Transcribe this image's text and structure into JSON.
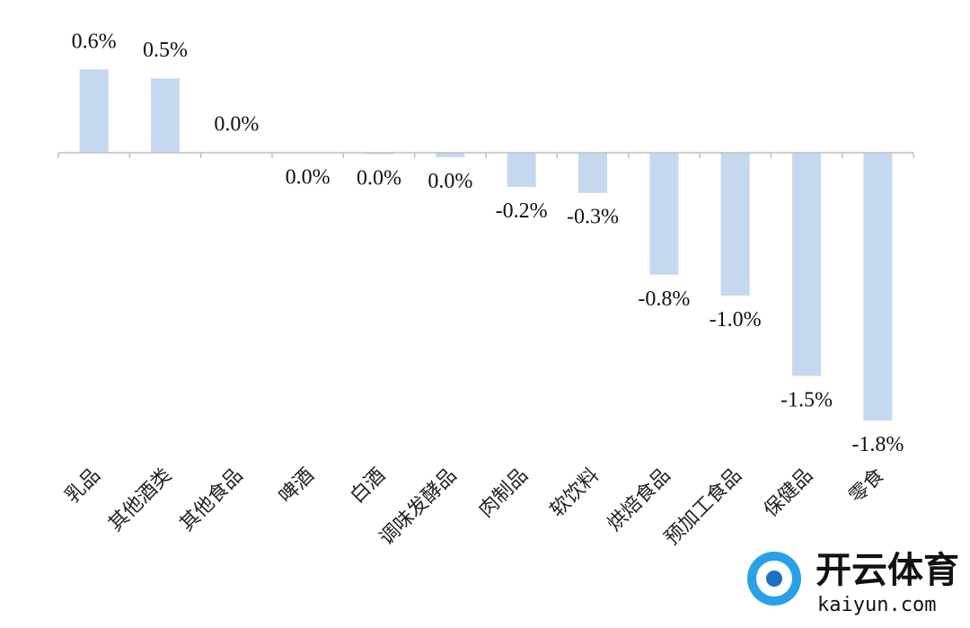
{
  "chart_data": {
    "type": "bar",
    "categories": [
      "乳品",
      "其他酒类",
      "其他食品",
      "啤酒",
      "白酒",
      "调味发酵品",
      "肉制品",
      "软饮料",
      "烘焙食品",
      "预加工食品",
      "保健品",
      "零食"
    ],
    "values": [
      0.56,
      0.5,
      0.002,
      -0.002,
      -0.01,
      -0.03,
      -0.23,
      -0.27,
      -0.82,
      -0.96,
      -1.5,
      -1.8
    ],
    "value_labels": [
      "0.6%",
      "0.5%",
      "0.0%",
      "0.0%",
      "0.0%",
      "0.0%",
      "-0.2%",
      "-0.3%",
      "-0.8%",
      "-1.0%",
      "-1.5%",
      "-1.8%"
    ],
    "color": "#c6d8f0",
    "ylim": [
      -2,
      1
    ]
  },
  "watermark": {
    "name": "开云体育",
    "url": "kaiyun.com"
  }
}
